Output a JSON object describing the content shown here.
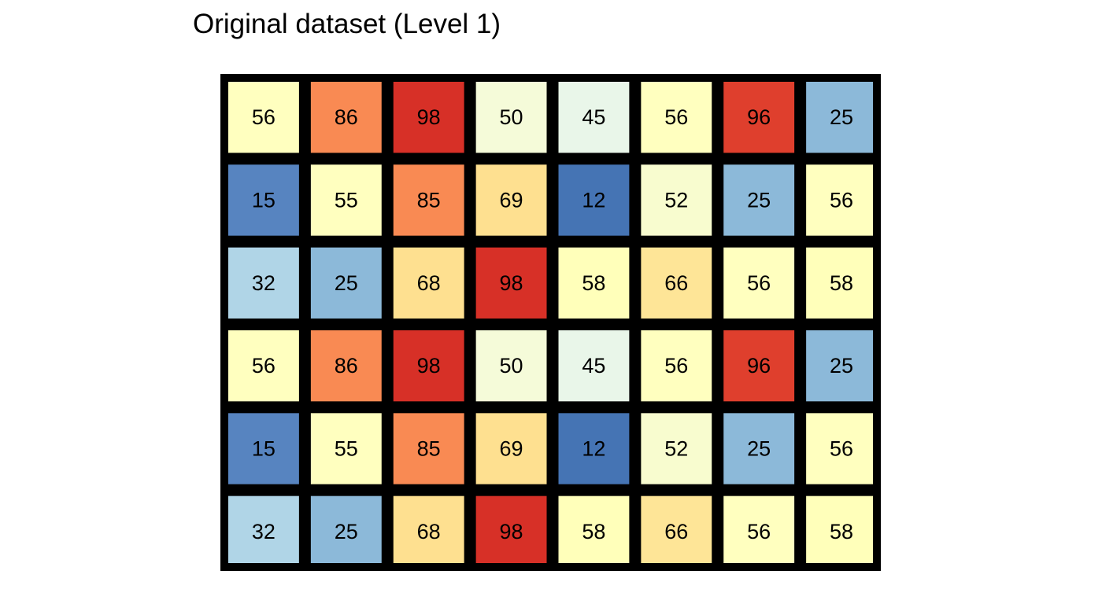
{
  "chart_data": {
    "type": "heatmap",
    "title": "Original dataset (Level 1)",
    "xlabel": "",
    "ylabel": "",
    "legend": "none",
    "grid": false,
    "rows": 6,
    "cols": 8,
    "values": [
      [
        56,
        86,
        98,
        50,
        45,
        56,
        96,
        25
      ],
      [
        15,
        55,
        85,
        69,
        12,
        52,
        25,
        56
      ],
      [
        32,
        25,
        68,
        98,
        58,
        66,
        56,
        58
      ],
      [
        56,
        86,
        98,
        50,
        45,
        56,
        96,
        25
      ],
      [
        15,
        55,
        85,
        69,
        12,
        52,
        25,
        56
      ],
      [
        32,
        25,
        68,
        98,
        58,
        66,
        56,
        58
      ]
    ],
    "colors": [
      [
        "#FFFFBF",
        "#F98A53",
        "#D73027",
        "#F5FBD9",
        "#E9F6E9",
        "#FFFFBF",
        "#DF3F2D",
        "#8CB9D9"
      ],
      [
        "#5784C0",
        "#FFFFBF",
        "#F98A53",
        "#FEE090",
        "#4574B4",
        "#F8FCCF",
        "#8CB9D9",
        "#FFFFBF"
      ],
      [
        "#B0D5E7",
        "#8CB9D9",
        "#FEE090",
        "#D73027",
        "#FFFFBA",
        "#FEE597",
        "#FFFFBF",
        "#FFFFBA"
      ],
      [
        "#FFFFBF",
        "#F98A53",
        "#D73027",
        "#F5FBD9",
        "#E9F6E9",
        "#FFFFBF",
        "#DF3F2D",
        "#8CB9D9"
      ],
      [
        "#5784C0",
        "#FFFFBF",
        "#F98A53",
        "#FEE090",
        "#4574B4",
        "#F8FCCF",
        "#8CB9D9",
        "#FFFFBF"
      ],
      [
        "#B0D5E7",
        "#8CB9D9",
        "#FEE090",
        "#D73027",
        "#FFFFBA",
        "#FEE597",
        "#FFFFBF",
        "#FFFFBA"
      ]
    ],
    "border_color": "#000000",
    "label_color": "#000000"
  }
}
